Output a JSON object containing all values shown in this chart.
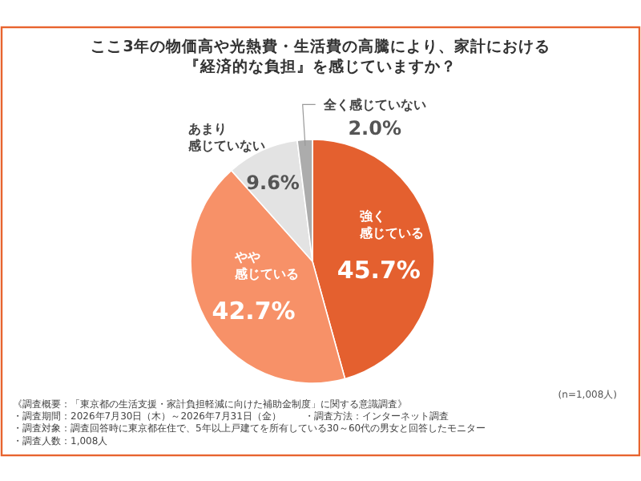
{
  "chart_data": {
    "type": "pie",
    "title": "ここ3年の物価高や光熱費・生活費の高騰により、家計における『経済的な負担』を感じていますか？",
    "categories": [
      "強く感じている",
      "やや感じている",
      "あまり感じていない",
      "全く感じていない"
    ],
    "values": [
      45.7,
      42.7,
      9.6,
      2.0
    ],
    "value_labels": [
      "45.7%",
      "42.7%",
      "9.6%",
      "2.0%"
    ],
    "colors": [
      "#e4602f",
      "#f79168",
      "#e3e3e3",
      "#acacac"
    ],
    "annotations": [
      "(n=1,008人)",
      "《調査概要：「東京都の生活支援・家計負担軽減に向けた補助金制度」に関する意識調査》",
      "・調査期間：2026年7月30日（木）～2026年7月31日（金）",
      "・調査方法：インターネット調査",
      "・調査対象：調査回答時に東京都在住で、5年以上戸建てを所有している30～60代の男女と回答したモニター",
      "・調査人数：1,008人"
    ]
  }
}
